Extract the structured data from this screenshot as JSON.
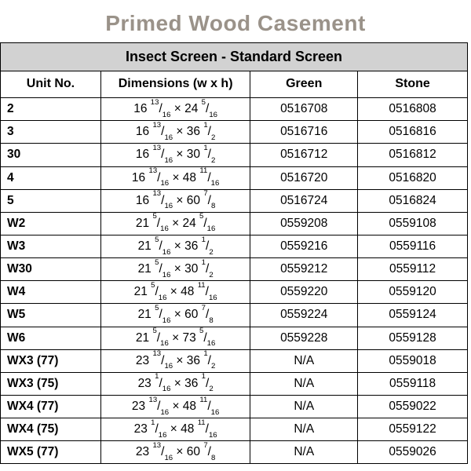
{
  "title": "Primed Wood Casement",
  "banner": "Insect Screen - Standard Screen",
  "columns": [
    "Unit No.",
    "Dimensions (w x h)",
    "Green",
    "Stone"
  ],
  "column_widths_pct": [
    21.5,
    32,
    23,
    23.5
  ],
  "colors": {
    "title_color": "#9a9289",
    "banner_bg": "#d2d2d2",
    "border": "#000000",
    "background": "#ffffff",
    "text": "#000000"
  },
  "typography": {
    "title_fontsize_pt": 21,
    "banner_fontsize_pt": 13.5,
    "header_fontsize_pt": 12,
    "cell_fontsize_pt": 11.5,
    "font_family": "Arial"
  },
  "rows": [
    {
      "unit": "2",
      "w_whole": 16,
      "w_num": 13,
      "w_den": 16,
      "h_whole": 24,
      "h_num": 5,
      "h_den": 16,
      "green": "0516708",
      "stone": "0516808"
    },
    {
      "unit": "3",
      "w_whole": 16,
      "w_num": 13,
      "w_den": 16,
      "h_whole": 36,
      "h_num": 1,
      "h_den": 2,
      "green": "0516716",
      "stone": "0516816"
    },
    {
      "unit": "30",
      "w_whole": 16,
      "w_num": 13,
      "w_den": 16,
      "h_whole": 30,
      "h_num": 1,
      "h_den": 2,
      "green": "0516712",
      "stone": "0516812"
    },
    {
      "unit": "4",
      "w_whole": 16,
      "w_num": 13,
      "w_den": 16,
      "h_whole": 48,
      "h_num": 11,
      "h_den": 16,
      "green": "0516720",
      "stone": "0516820"
    },
    {
      "unit": "5",
      "w_whole": 16,
      "w_num": 13,
      "w_den": 16,
      "h_whole": 60,
      "h_num": 7,
      "h_den": 8,
      "green": "0516724",
      "stone": "0516824"
    },
    {
      "unit": "W2",
      "w_whole": 21,
      "w_num": 5,
      "w_den": 16,
      "h_whole": 24,
      "h_num": 5,
      "h_den": 16,
      "green": "0559208",
      "stone": "0559108"
    },
    {
      "unit": "W3",
      "w_whole": 21,
      "w_num": 5,
      "w_den": 16,
      "h_whole": 36,
      "h_num": 1,
      "h_den": 2,
      "green": "0559216",
      "stone": "0559116"
    },
    {
      "unit": "W30",
      "w_whole": 21,
      "w_num": 5,
      "w_den": 16,
      "h_whole": 30,
      "h_num": 1,
      "h_den": 2,
      "green": "0559212",
      "stone": "0559112"
    },
    {
      "unit": "W4",
      "w_whole": 21,
      "w_num": 5,
      "w_den": 16,
      "h_whole": 48,
      "h_num": 11,
      "h_den": 16,
      "green": "0559220",
      "stone": "0559120"
    },
    {
      "unit": "W5",
      "w_whole": 21,
      "w_num": 5,
      "w_den": 16,
      "h_whole": 60,
      "h_num": 7,
      "h_den": 8,
      "green": "0559224",
      "stone": "0559124"
    },
    {
      "unit": "W6",
      "w_whole": 21,
      "w_num": 5,
      "w_den": 16,
      "h_whole": 73,
      "h_num": 5,
      "h_den": 16,
      "green": "0559228",
      "stone": "0559128"
    },
    {
      "unit": "WX3 (77)",
      "w_whole": 23,
      "w_num": 13,
      "w_den": 16,
      "h_whole": 36,
      "h_num": 1,
      "h_den": 2,
      "green": "N/A",
      "stone": "0559018"
    },
    {
      "unit": "WX3 (75)",
      "w_whole": 23,
      "w_num": 1,
      "w_den": 16,
      "h_whole": 36,
      "h_num": 1,
      "h_den": 2,
      "green": "N/A",
      "stone": "0559118"
    },
    {
      "unit": "WX4 (77)",
      "w_whole": 23,
      "w_num": 13,
      "w_den": 16,
      "h_whole": 48,
      "h_num": 11,
      "h_den": 16,
      "green": "N/A",
      "stone": "0559022"
    },
    {
      "unit": "WX4 (75)",
      "w_whole": 23,
      "w_num": 1,
      "w_den": 16,
      "h_whole": 48,
      "h_num": 11,
      "h_den": 16,
      "green": "N/A",
      "stone": "0559122"
    },
    {
      "unit": "WX5 (77)",
      "w_whole": 23,
      "w_num": 13,
      "w_den": 16,
      "h_whole": 60,
      "h_num": 7,
      "h_den": 8,
      "green": "N/A",
      "stone": "0559026"
    }
  ]
}
